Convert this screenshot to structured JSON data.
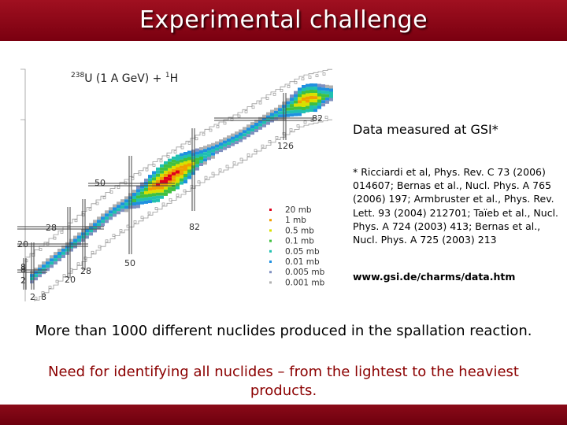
{
  "slide": {
    "title": "Experimental challenge",
    "data_heading": "Data measured at GSI*",
    "references": "* Ricciardi et al, Phys. Rev. C 73 (2006) 014607;  Bernas et al., Nucl. Phys. A 765 (2006) 197; Armbruster et al., Phys. Rev. Lett. 93 (2004) 212701; Taïeb et al., Nucl. Phys. A 724 (2003) 413; Bernas et al., Nucl. Phys. A 725 (2003) 213",
    "url": "www.gsi.de/charms/data.htm",
    "main_text": "More than 1000 different nuclides produced in the spallation reaction.",
    "need_text": "Need for identifying all nuclides – from the lightest to the heaviest products."
  },
  "chart_data": {
    "type": "heatmap",
    "title_sup": "238",
    "title_main": "U (1 A GeV) + ",
    "title_sup2": "1",
    "title_end": "H",
    "proton_magic_numbers": [
      "8",
      "20",
      "28",
      "50",
      "82"
    ],
    "neutron_magic_numbers": [
      "2",
      "8",
      "20",
      "28",
      "50",
      "82",
      "126"
    ],
    "left_bottom_labels": [
      "8",
      "2"
    ],
    "legend": [
      {
        "label": "20 mb",
        "color": "#e0001a"
      },
      {
        "label": "1 mb",
        "color": "#f0a000"
      },
      {
        "label": "0.5 mb",
        "color": "#d8e000"
      },
      {
        "label": "0.1 mb",
        "color": "#40c040"
      },
      {
        "label": "0.05 mb",
        "color": "#20c0b0"
      },
      {
        "label": "0.01 mb",
        "color": "#2090e0"
      },
      {
        "label": "0.005 mb",
        "color": "#8090c0"
      },
      {
        "label": "0.001 mb",
        "color": "#b0b0b0"
      }
    ]
  }
}
